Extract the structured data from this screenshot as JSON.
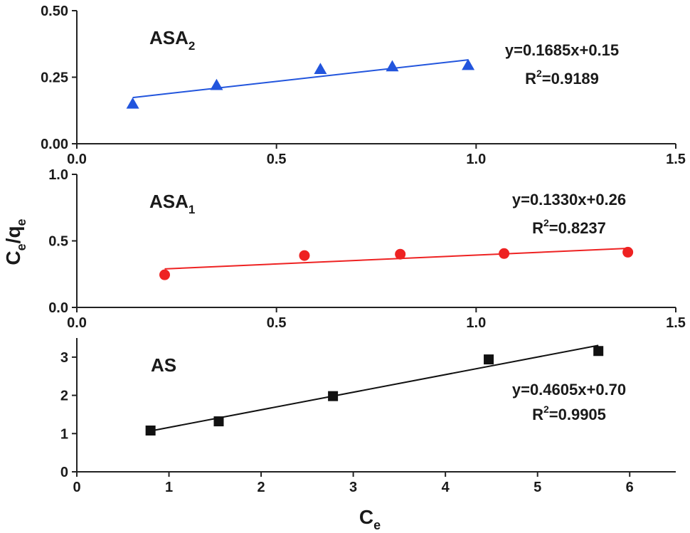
{
  "chart_data": [
    {
      "type": "scatter",
      "panel_label": "ASA",
      "panel_label_sub": "2",
      "xlim": [
        0,
        1.5
      ],
      "ylim": [
        0,
        0.5
      ],
      "x_ticks": [
        0.0,
        0.5,
        1.0,
        1.5
      ],
      "x_tick_labels": [
        "0.0",
        "0.5",
        "1.0",
        "1.5"
      ],
      "y_ticks": [
        0,
        0.25,
        0.5
      ],
      "y_tick_labels": [
        "0.00",
        "0.25",
        "0.50"
      ],
      "marker": "triangle",
      "color": "#2255dd",
      "x": [
        0.14,
        0.35,
        0.61,
        0.79,
        0.98
      ],
      "y": [
        0.15,
        0.22,
        0.28,
        0.29,
        0.295
      ],
      "fit": {
        "slope": 0.1685,
        "intercept": 0.15,
        "x_range": [
          0.14,
          0.98
        ]
      },
      "equation": "y=0.1685x+0.15",
      "r2_prefix": "R",
      "r2_sup": "2",
      "r2_value": "=0.9189"
    },
    {
      "type": "scatter",
      "panel_label": "ASA",
      "panel_label_sub": "1",
      "xlim": [
        0,
        1.5
      ],
      "ylim": [
        0,
        1.0
      ],
      "x_ticks": [
        0.0,
        0.5,
        1.0,
        1.5
      ],
      "x_tick_labels": [
        "0.0",
        "0.5",
        "1.0",
        "1.5"
      ],
      "y_ticks": [
        0,
        0.5,
        1.0
      ],
      "y_tick_labels": [
        "0.0",
        "0.5",
        "1.0"
      ],
      "marker": "circle",
      "color": "#ee2222",
      "x": [
        0.22,
        0.57,
        0.81,
        1.07,
        1.38
      ],
      "y": [
        0.245,
        0.39,
        0.4,
        0.405,
        0.415
      ],
      "fit": {
        "slope": 0.133,
        "intercept": 0.26,
        "x_range": [
          0.22,
          1.38
        ]
      },
      "equation": "y=0.1330x+0.26",
      "r2_prefix": "R",
      "r2_sup": "2",
      "r2_value": "=0.8237"
    },
    {
      "type": "scatter",
      "panel_label": "AS",
      "panel_label_sub": "",
      "xlim": [
        0,
        6.5
      ],
      "ylim": [
        0,
        3.5
      ],
      "x_ticks": [
        0,
        1,
        2,
        3,
        4,
        5,
        6
      ],
      "x_tick_labels": [
        "0",
        "1",
        "2",
        "3",
        "4",
        "5",
        "6"
      ],
      "y_ticks": [
        0,
        1,
        2,
        3
      ],
      "y_tick_labels": [
        "0",
        "1",
        "2",
        "3"
      ],
      "marker": "square",
      "color": "#111111",
      "x": [
        0.8,
        1.54,
        2.78,
        4.47,
        5.66
      ],
      "y": [
        1.08,
        1.32,
        1.98,
        2.94,
        3.16
      ],
      "fit": {
        "slope": 0.4605,
        "intercept": 0.7,
        "x_range": [
          0.8,
          5.66
        ]
      },
      "equation": "y=0.4605x+0.70",
      "r2_prefix": "R",
      "r2_sup": "2",
      "r2_value": "=0.9905"
    }
  ],
  "ylabel": {
    "main1": "C",
    "sub1": "e",
    "main2": "/q",
    "sub2": "e"
  },
  "xlabel": {
    "main": "C",
    "sub": "e"
  }
}
